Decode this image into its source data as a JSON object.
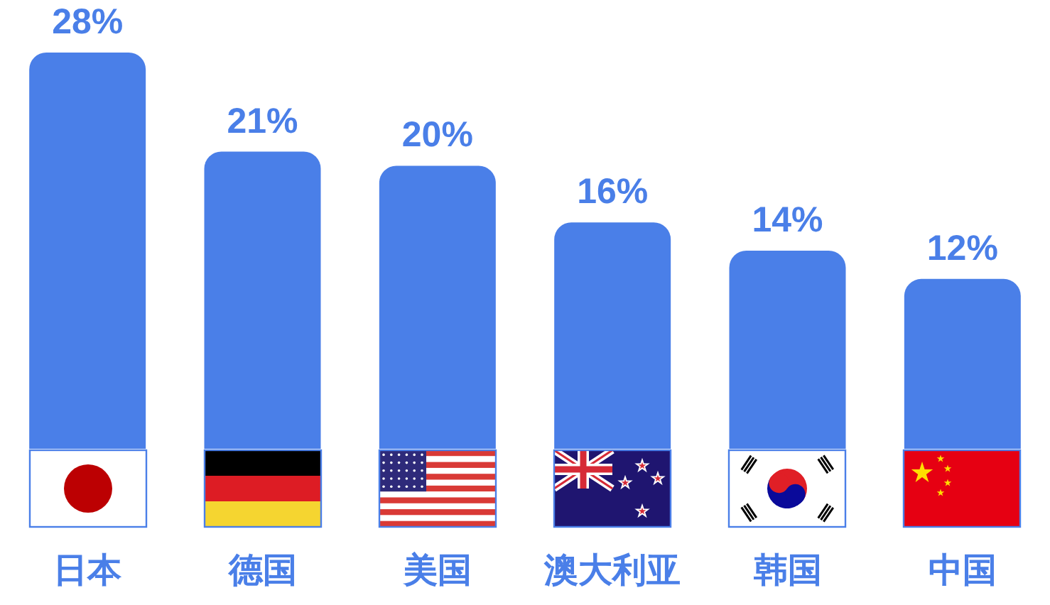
{
  "chart_data": {
    "type": "bar",
    "categories": [
      "日本",
      "德国",
      "美国",
      "澳大利亚",
      "韩国",
      "中国"
    ],
    "values": [
      28,
      21,
      20,
      16,
      14,
      12
    ],
    "value_labels": [
      "28%",
      "21%",
      "20%",
      "16%",
      "14%",
      "12%"
    ],
    "color": "#4a7fe8",
    "tick_labels": "x"
  }
}
